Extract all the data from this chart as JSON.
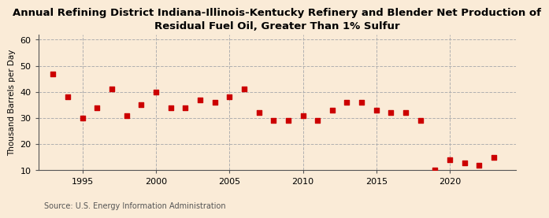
{
  "title": "Annual Refining District Indiana-Illinois-Kentucky Refinery and Blender Net Production of\nResidual Fuel Oil, Greater Than 1% Sulfur",
  "ylabel": "Thousand Barrels per Day",
  "source": "Source: U.S. Energy Information Administration",
  "years": [
    1993,
    1994,
    1995,
    1996,
    1997,
    1998,
    1999,
    2000,
    2001,
    2002,
    2003,
    2004,
    2005,
    2006,
    2007,
    2008,
    2009,
    2010,
    2011,
    2012,
    2013,
    2014,
    2015,
    2016,
    2017,
    2018,
    2019,
    2020,
    2021,
    2022,
    2023
  ],
  "values": [
    47,
    38,
    30,
    34,
    41,
    31,
    35,
    40,
    34,
    34,
    37,
    36,
    38,
    41,
    32,
    29,
    29,
    31,
    29,
    33,
    36,
    36,
    33,
    32,
    32,
    29,
    10,
    14,
    13,
    12,
    15
  ],
  "marker_color": "#cc0000",
  "background_color": "#faebd7",
  "plot_bg_color": "#faebd7",
  "grid_color": "#b0b0b0",
  "ylim": [
    10,
    62
  ],
  "yticks": [
    10,
    20,
    30,
    40,
    50,
    60
  ],
  "xlim": [
    1992.0,
    2024.5
  ],
  "xticks": [
    1995,
    2000,
    2005,
    2010,
    2015,
    2020
  ],
  "title_fontsize": 9.5,
  "ylabel_fontsize": 7.5,
  "tick_fontsize": 8,
  "source_fontsize": 7
}
